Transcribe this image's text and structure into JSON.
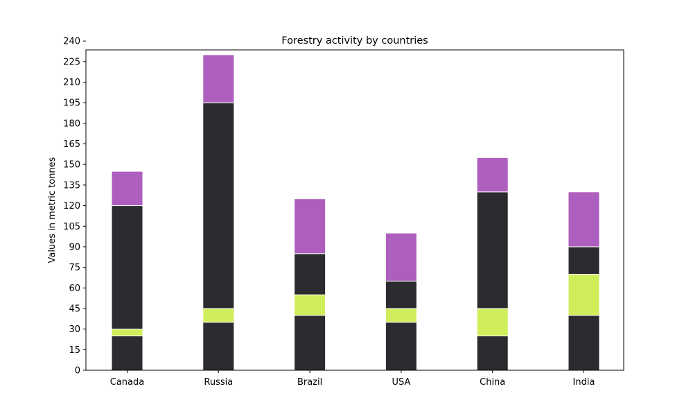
{
  "chart_data": {
    "type": "bar",
    "stacked": true,
    "title": "Forestry activity by countries",
    "xlabel": "",
    "ylabel": "Values in metric tonnes",
    "categories": [
      "Canada",
      "Russia",
      "Brazil",
      "USA",
      "China",
      "India"
    ],
    "ylim": [
      0,
      240
    ],
    "yticks": [
      0,
      15,
      30,
      45,
      60,
      75,
      90,
      105,
      120,
      135,
      150,
      165,
      180,
      195,
      210,
      225,
      240
    ],
    "grid": false,
    "series": [
      {
        "color": "#2b2b30",
        "values": [
          25,
          35,
          40,
          35,
          25,
          40
        ]
      },
      {
        "color": "#d0ed5b",
        "values": [
          5,
          10,
          15,
          10,
          20,
          30
        ]
      },
      {
        "color": "#2b2b30",
        "values": [
          90,
          150,
          30,
          20,
          85,
          20
        ]
      },
      {
        "color": "#ae5ebe",
        "values": [
          25,
          35,
          40,
          35,
          25,
          40
        ]
      }
    ]
  }
}
